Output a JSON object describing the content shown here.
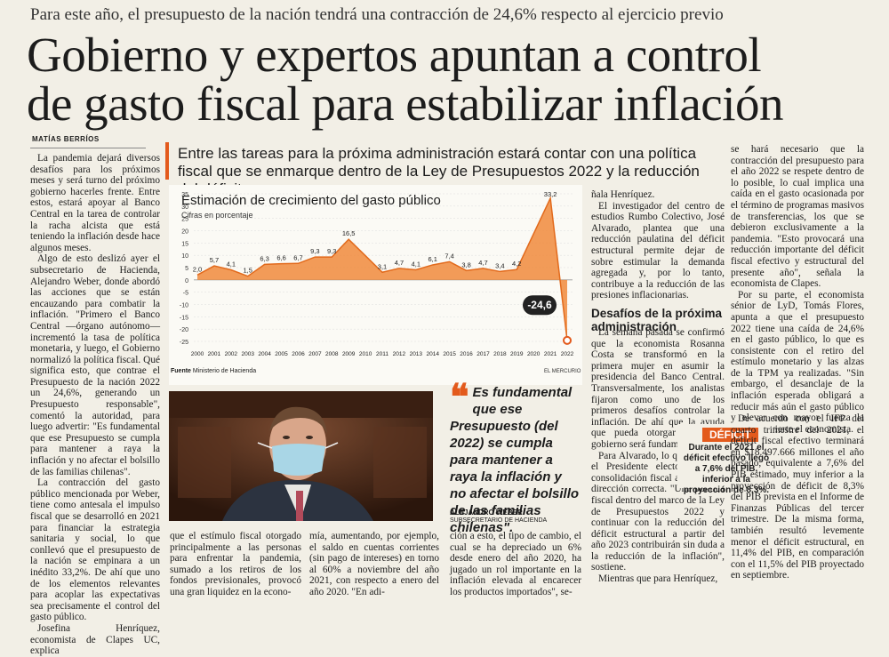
{
  "kicker": "Para este año, el presupuesto de la nación tendrá una contracción de 24,6% respecto al ejercicio previo",
  "headline_line1": "Gobierno y expertos apuntan a control",
  "headline_line2": "de gasto fiscal para estabilizar inflación",
  "byline": "MATÍAS BERRÍOS",
  "deck": "Entre las tareas para la próxima administración estará contar con una política fiscal que se enmarque dentro de la Ley de Presupuestos 2022 y la reducción del déficit.",
  "col1": [
    "La pandemia dejará diversos desafíos para los próximos meses y será turno del próximo gobierno hacerles frente. Entre estos, estará apoyar al Banco Central en la tarea de controlar la racha alcista que está teniendo la inflación desde hace algunos meses.",
    "Algo de esto deslizó ayer el subsecretario de Hacienda, Alejandro Weber, donde abordó las acciones que se están encauzando para combatir la inflación. \"Primero el Banco Central —órgano autónomo— incrementó la tasa de política monetaria, y luego, el Gobierno normalizó la política fiscal. Qué significa esto, que contrae el Presupuesto de la nación 2022 un 24,6%, generando un Presupuesto responsable\", comentó la autoridad, para luego advertir: \"Es fundamental que ese Presupuesto se cumpla para mantener a raya la inflación y no afectar el bolsillo de las familias chilenas\".",
    "La contracción del gasto público mencionada por Weber, tiene como antesala el impulso fiscal que se desarrolló en 2021 para financiar la estrategia sanitaria y social, lo que conllevó que el presupuesto de la nación se empinara a un inédito 33,2%. De ahí que uno de los elementos relevantes para acoplar las expectativas sea precisamente el control del gasto público.",
    "Josefina Henríquez, economista de Clapes UC, explica"
  ],
  "chart_data": {
    "type": "area",
    "title": "Estimación de crecimiento del gasto público",
    "subtitle": "Cifras en porcentaje",
    "source_label": "Fuente",
    "source": "Ministerio de Hacienda",
    "brand": "EL MERCURIO",
    "x": [
      "2000",
      "2001",
      "2002",
      "2003",
      "2004",
      "2005",
      "2006",
      "2007",
      "2008",
      "2009",
      "2010",
      "2011",
      "2012",
      "2013",
      "2014",
      "2015",
      "2016",
      "2017",
      "2018",
      "2019",
      "2020",
      "2021",
      "2022"
    ],
    "values": [
      2.0,
      5.7,
      4.1,
      1.5,
      6.3,
      6.6,
      6.7,
      9.3,
      9.3,
      16.5,
      null,
      3.1,
      4.7,
      4.1,
      6.1,
      7.4,
      3.8,
      4.7,
      3.4,
      4.2,
      null,
      33.2,
      -24.6
    ],
    "labels": [
      "2,0",
      "5,7",
      "4,1",
      "1,5",
      "6,3",
      "6,6",
      "6,7",
      "9,3",
      "9,3",
      "16,5",
      "",
      "3,1",
      "4,7",
      "4,1",
      "6,1",
      "7,4",
      "3,8",
      "4,7",
      "3,4",
      "4,2",
      "",
      "33,2",
      ""
    ],
    "highlight_label": "-24,6",
    "ylim": [
      -25,
      35
    ],
    "yticks": [
      "35",
      "30",
      "25",
      "20",
      "15",
      "10",
      "5",
      "0",
      "-5",
      "-10",
      "-15",
      "-20",
      "-25"
    ],
    "grid": true,
    "accent": "#f08a3c"
  },
  "quote": "Es fundamental que ese Presupuesto (del 2022) se cumpla para mantener a raya la inflación y no afectar el bolsillo de las familias chilenas\".",
  "quote_mark": "❝",
  "quote_name": "ALEJANDRO WEBER",
  "quote_role": "SUBSECRETARIO DE HACIENDA",
  "col2": "que el estímulo fiscal otorgado principalmente a las personas para enfrentar la pandemia, sumado a los retiros de los fondos previsionales, provocó una gran liquidez en la econo-",
  "col3": "mía, aumentando, por ejemplo, el saldo en cuentas corrientes (sin pago de intereses) en torno al 60% a noviembre del año 2021, con respecto a enero del año 2020. \"En adi-",
  "col4": "ción a esto, el tipo de cambio, el cual se ha depreciado un 6% desde enero del año 2020, ha jugado un rol importante en la inflación elevada al encarecer los productos importados\", se-",
  "col5a": [
    "ñala Henríquez.",
    "El investigador del centro de estudios Rumbo Colectivo, José Alvarado, plantea que una reducción paulatina del déficit estructural permite dejar de sobre estimular la demanda agregada y, por lo tanto, contribuye a la reducción de las presiones inflacionarias."
  ],
  "subhead": "Desafíos de la próxima administración",
  "col5b": [
    "La semana pasada se confirmó que la economista Rosanna Costa se transformó en la primera mujer en asumir la presidencia del Banco Central. Transversalmente, los analistas fijaron como uno de los primeros desafíos controlar la inflación. De ahí que la ayuda que pueda otorgar el futuro gobierno será fundamental.",
    "Para Alvarado, lo que ha dicho el Presidente electo sobre la consolidación fiscal apunta en la dirección correcta. \"Una política fiscal dentro del marco de la Ley de Presupuestos 2022 y continuar con la reducción del déficit estructural a partir del año 2023 contribuirán sin duda a la reducción de la inflación\", sostiene.",
    "Mientras que para Henríquez,"
  ],
  "col6a": [
    "se hará necesario que la contracción del presupuesto para el año 2022 se respete dentro de lo posible, lo cual implica una caída en el gasto ocasionada por el término de programas masivos de transferencias, los que se debieron exclusivamente a la pandemia. \"Esto provocará una reducción importante del déficit fiscal efectivo y estructural del presente año\", señala la economista de Clapes.",
    "Por su parte, el economista sénior de LyD, Tomás Flores, apunta a que el presupuesto 2022 tiene una caída de 24,6% en el gasto público, lo que es consistente con el retiro del estímulo monetario y las alzas de la TPM ya realizadas. \"Sin embargo, el desanclaje de la inflación esperada obligará a reducir más aún el gasto público y elevar con mayor fuerza la TPM\", advierte el economista."
  ],
  "def_label": "DÉFICIT",
  "def_text": "Durante el 2021 el déficit efectivo llegó a 7,6% del PIB, inferior a la proyección de 8,3%.",
  "col6b": [
    "De acuerdo con el IFP del cuarto trimestre del 2021, el déficit fiscal efectivo terminará en $18.497.666 millones el año pasado, equivalente a 7,6% del PIB estimado, muy inferior a la proyección de déficit de 8,3% del PIB prevista en el Informe de Finanzas Públicas del tercer trimestre. De la misma forma, también resultó levemente menor el déficit estructural, en 11,4% del PIB, en comparación con el 11,5% del PIB proyectado en septiembre."
  ]
}
